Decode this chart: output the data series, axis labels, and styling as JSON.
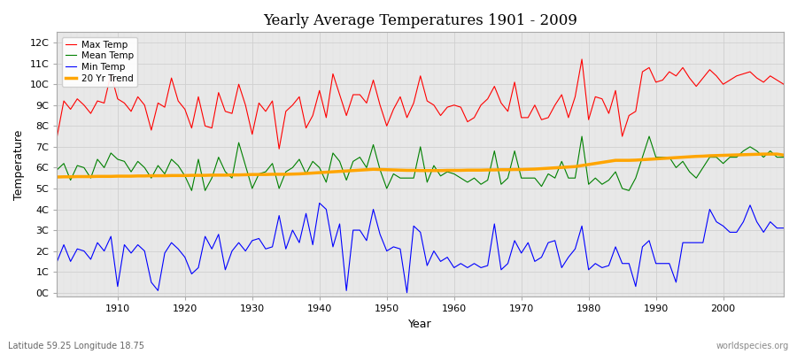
{
  "title": "Yearly Average Temperatures 1901 - 2009",
  "xlabel": "Year",
  "ylabel": "Temperature",
  "footnote_left": "Latitude 59.25 Longitude 18.75",
  "footnote_right": "worldspecies.org",
  "year_start": 1901,
  "year_end": 2009,
  "yticks": [
    0,
    1,
    2,
    3,
    4,
    5,
    6,
    7,
    8,
    9,
    10,
    11,
    12
  ],
  "ytick_labels": [
    "0C",
    "1C",
    "2C",
    "3C",
    "4C",
    "5C",
    "6C",
    "7C",
    "8C",
    "9C",
    "10C",
    "11C",
    "12C"
  ],
  "xticks": [
    1910,
    1920,
    1930,
    1940,
    1950,
    1960,
    1970,
    1980,
    1990,
    2000
  ],
  "colors": {
    "max": "#ff0000",
    "mean": "#008000",
    "min": "#0000ff",
    "trend": "#ffa500",
    "background": "#ffffff",
    "grid_major": "#d0d0d0",
    "grid_minor": "#e0e0e0",
    "panel": "#e8e8e8"
  },
  "legend": [
    {
      "label": "Max Temp",
      "color": "#ff0000"
    },
    {
      "label": "Mean Temp",
      "color": "#008000"
    },
    {
      "label": "Min Temp",
      "color": "#0000ff"
    },
    {
      "label": "20 Yr Trend",
      "color": "#ffa500"
    }
  ],
  "max_temps": [
    7.5,
    9.2,
    8.8,
    9.3,
    9.0,
    8.6,
    9.2,
    9.1,
    10.5,
    9.3,
    9.1,
    8.7,
    9.4,
    9.0,
    7.8,
    9.1,
    8.9,
    10.3,
    9.2,
    8.8,
    7.9,
    9.4,
    8.0,
    7.9,
    9.6,
    8.7,
    8.6,
    10.0,
    9.0,
    7.6,
    9.1,
    8.7,
    9.2,
    6.9,
    8.7,
    9.0,
    9.4,
    7.9,
    8.5,
    9.7,
    8.4,
    10.5,
    9.5,
    8.5,
    9.5,
    9.5,
    9.1,
    10.2,
    9.0,
    8.0,
    8.8,
    9.4,
    8.4,
    9.1,
    10.4,
    9.2,
    9.0,
    8.5,
    8.9,
    9.0,
    8.9,
    8.2,
    8.4,
    9.0,
    9.3,
    9.9,
    9.1,
    8.7,
    10.1,
    8.4,
    8.4,
    9.0,
    8.3,
    8.4,
    9.0,
    9.5,
    8.4,
    9.4,
    11.2,
    8.3,
    9.4,
    9.3,
    8.6,
    9.7,
    7.5,
    8.5,
    8.7,
    10.6,
    10.8,
    10.1,
    10.2,
    10.6,
    10.4,
    10.8,
    10.3,
    9.9,
    10.3,
    10.7,
    10.4,
    10.0,
    10.2,
    10.4,
    10.5,
    10.6,
    10.3,
    10.1,
    10.4,
    10.2,
    10.0
  ],
  "mean_temps": [
    5.9,
    6.2,
    5.4,
    6.1,
    6.0,
    5.5,
    6.4,
    6.0,
    6.7,
    6.4,
    6.3,
    5.8,
    6.3,
    6.0,
    5.5,
    6.1,
    5.7,
    6.4,
    6.1,
    5.6,
    4.9,
    6.4,
    4.9,
    5.5,
    6.5,
    5.8,
    5.5,
    7.2,
    6.1,
    5.0,
    5.7,
    5.8,
    6.2,
    5.0,
    5.8,
    6.0,
    6.4,
    5.7,
    6.3,
    6.0,
    5.3,
    6.7,
    6.3,
    5.4,
    6.3,
    6.5,
    6.0,
    7.1,
    5.9,
    5.0,
    5.7,
    5.5,
    5.5,
    5.5,
    7.0,
    5.3,
    6.1,
    5.6,
    5.8,
    5.7,
    5.5,
    5.3,
    5.5,
    5.2,
    5.4,
    6.8,
    5.2,
    5.5,
    6.8,
    5.5,
    5.5,
    5.5,
    5.1,
    5.7,
    5.5,
    6.3,
    5.5,
    5.5,
    7.5,
    5.2,
    5.5,
    5.2,
    5.4,
    5.8,
    5.0,
    4.9,
    5.5,
    6.5,
    7.5,
    6.5,
    6.5,
    6.5,
    6.0,
    6.3,
    5.8,
    5.5,
    6.0,
    6.5,
    6.5,
    6.2,
    6.5,
    6.5,
    6.8,
    7.0,
    6.8,
    6.5,
    6.8,
    6.5,
    6.5
  ],
  "min_temps": [
    1.5,
    2.3,
    1.5,
    2.1,
    2.0,
    1.6,
    2.4,
    2.0,
    2.7,
    0.3,
    2.3,
    1.9,
    2.3,
    2.0,
    0.5,
    0.1,
    1.9,
    2.4,
    2.1,
    1.7,
    0.9,
    1.2,
    2.7,
    2.1,
    2.8,
    1.1,
    2.0,
    2.4,
    2.0,
    2.5,
    2.6,
    2.1,
    2.2,
    3.7,
    2.1,
    3.0,
    2.4,
    3.8,
    2.3,
    4.3,
    4.0,
    2.2,
    3.3,
    0.1,
    3.0,
    3.0,
    2.5,
    4.0,
    2.8,
    2.0,
    2.2,
    2.1,
    0.0,
    3.2,
    2.9,
    1.3,
    2.0,
    1.5,
    1.7,
    1.2,
    1.4,
    1.2,
    1.4,
    1.2,
    1.3,
    3.3,
    1.1,
    1.4,
    2.5,
    1.9,
    2.4,
    1.5,
    1.7,
    2.4,
    2.5,
    1.2,
    1.7,
    2.1,
    3.2,
    1.1,
    1.4,
    1.2,
    1.3,
    2.2,
    1.4,
    1.4,
    0.3,
    2.2,
    2.5,
    1.4,
    1.4,
    1.4,
    0.5,
    2.4,
    2.4,
    2.4,
    2.4,
    4.0,
    3.4,
    3.2,
    2.9,
    2.9,
    3.4,
    4.2,
    3.4,
    2.9,
    3.4,
    3.1,
    3.1
  ],
  "trend_temps": [
    5.55,
    5.56,
    5.56,
    5.57,
    5.57,
    5.57,
    5.58,
    5.58,
    5.58,
    5.59,
    5.59,
    5.59,
    5.6,
    5.6,
    5.61,
    5.61,
    5.61,
    5.62,
    5.62,
    5.62,
    5.63,
    5.63,
    5.63,
    5.64,
    5.64,
    5.64,
    5.65,
    5.65,
    5.66,
    5.67,
    5.67,
    5.67,
    5.68,
    5.68,
    5.68,
    5.69,
    5.7,
    5.72,
    5.74,
    5.76,
    5.78,
    5.8,
    5.82,
    5.84,
    5.86,
    5.88,
    5.9,
    5.92,
    5.91,
    5.9,
    5.89,
    5.88,
    5.87,
    5.87,
    5.86,
    5.86,
    5.86,
    5.86,
    5.87,
    5.87,
    5.87,
    5.88,
    5.88,
    5.88,
    5.89,
    5.89,
    5.9,
    5.9,
    5.91,
    5.91,
    5.92,
    5.93,
    5.95,
    5.97,
    5.99,
    6.01,
    6.03,
    6.05,
    6.1,
    6.15,
    6.2,
    6.25,
    6.3,
    6.35,
    6.35,
    6.35,
    6.36,
    6.38,
    6.4,
    6.42,
    6.44,
    6.46,
    6.48,
    6.5,
    6.52,
    6.54,
    6.55,
    6.57,
    6.58,
    6.59,
    6.6,
    6.61,
    6.62,
    6.63,
    6.64,
    6.65,
    6.65,
    6.65,
    6.6
  ]
}
